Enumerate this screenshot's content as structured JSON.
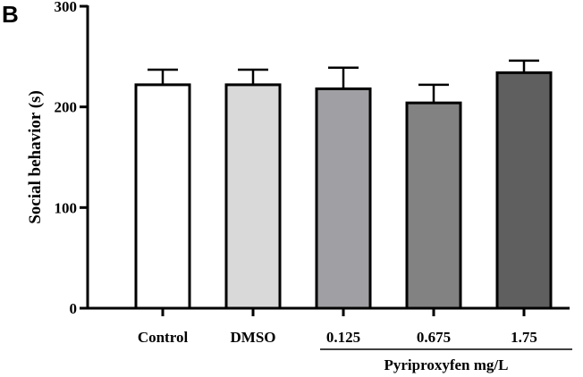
{
  "panel_label": "B",
  "chart_data": {
    "type": "bar",
    "categories": [
      "Control",
      "DMSO",
      "0.125",
      "0.675",
      "1.75"
    ],
    "values": [
      222,
      222,
      218,
      204,
      234
    ],
    "errors": [
      15,
      15,
      21,
      18,
      12
    ],
    "colors": [
      "#ffffff",
      "#d9d9d9",
      "#a0a0a4",
      "#828282",
      "#5f5f5f"
    ],
    "ylabel": "Social behavior (s)",
    "ylim": [
      0,
      300
    ],
    "yticks": [
      0,
      100,
      200,
      300
    ],
    "group_label": "Pyriproxyfen mg/L",
    "group_categories": [
      "0.125",
      "0.675",
      "1.75"
    ],
    "grid": false
  }
}
